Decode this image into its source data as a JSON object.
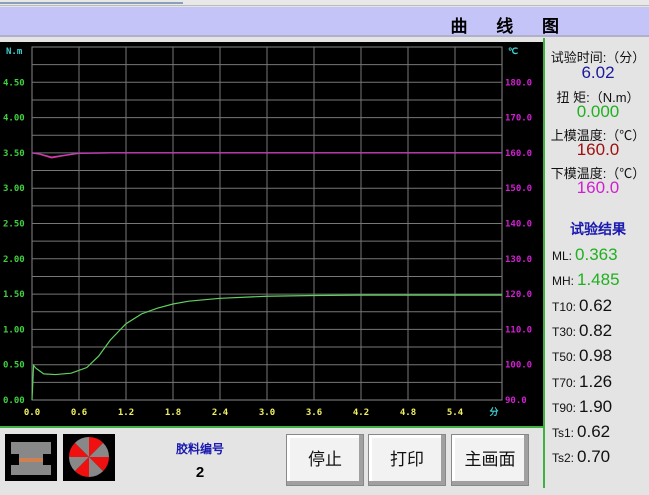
{
  "title": "曲 线 图",
  "chart_data": {
    "type": "line",
    "left_unit": "N.m",
    "right_unit": "℃",
    "x_unit": "分",
    "x_ticks": [
      "0.0",
      "0.6",
      "1.2",
      "1.8",
      "2.4",
      "3.0",
      "3.6",
      "4.2",
      "4.8",
      "5.4"
    ],
    "y_left_ticks": [
      "0.00",
      "0.50",
      "1.00",
      "1.50",
      "2.00",
      "2.50",
      "3.00",
      "3.50",
      "4.00",
      "4.50"
    ],
    "y_right_ticks": [
      "90.0",
      "100.0",
      "110.0",
      "120.0",
      "130.0",
      "140.0",
      "150.0",
      "160.0",
      "170.0",
      "180.0"
    ],
    "xlim": [
      0,
      6
    ],
    "ylim_left": [
      0,
      5
    ],
    "ylim_right": [
      90,
      190
    ],
    "grid": true,
    "series": [
      {
        "axis": "left",
        "color": "#60d060",
        "x": [
          0,
          0.02,
          0.05,
          0.15,
          0.3,
          0.5,
          0.7,
          0.85,
          1.0,
          1.2,
          1.4,
          1.6,
          1.8,
          2.0,
          2.4,
          3.0,
          3.6,
          4.2,
          4.8,
          5.4,
          6.0
        ],
        "y": [
          0,
          0.49,
          0.45,
          0.37,
          0.36,
          0.38,
          0.46,
          0.62,
          0.85,
          1.08,
          1.22,
          1.3,
          1.36,
          1.4,
          1.44,
          1.47,
          1.48,
          1.485,
          1.485,
          1.485,
          1.485
        ]
      },
      {
        "axis": "right",
        "color": "#e03070",
        "x": [
          0,
          0.1,
          0.25,
          0.4,
          0.6,
          1.0,
          6.0
        ],
        "y": [
          160,
          159.6,
          158.6,
          159.2,
          159.9,
          160,
          160
        ]
      },
      {
        "axis": "right",
        "color": "#c040c0",
        "x": [
          0,
          0.1,
          0.25,
          0.4,
          0.6,
          1.0,
          6.0
        ],
        "y": [
          160,
          159.7,
          158.8,
          159.3,
          159.9,
          160,
          160
        ]
      }
    ]
  },
  "panel": {
    "time_label": "试验时间:（分）",
    "time_value": "6.02",
    "time_color": "#1a1a9a",
    "torque_label": "扭 矩:（N.m）",
    "torque_value": "0.000",
    "torque_color": "#20b020",
    "upper_label": "上模温度:（℃）",
    "upper_value": "160.0",
    "upper_color": "#a01010",
    "lower_label": "下模温度:（℃）",
    "lower_value": "160.0",
    "lower_color": "#d020d0",
    "results_title": "试验结果",
    "results": [
      {
        "k": "ML:",
        "v": "0.363",
        "color": "#20b020"
      },
      {
        "k": "MH:",
        "v": "1.485",
        "color": "#20b020"
      },
      {
        "k": "T10:",
        "v": "0.62"
      },
      {
        "k": "T30:",
        "v": "0.82"
      },
      {
        "k": "T50:",
        "v": "0.98"
      },
      {
        "k": "T70:",
        "v": "1.26"
      },
      {
        "k": "T90:",
        "v": "1.90"
      },
      {
        "k": "Ts1:",
        "v": "0.62"
      },
      {
        "k": "Ts2:",
        "v": "0.70"
      }
    ]
  },
  "bottom": {
    "compound_label": "胶料编号",
    "compound_value": "2",
    "stop": "停止",
    "print": "打印",
    "main": "主画面"
  }
}
